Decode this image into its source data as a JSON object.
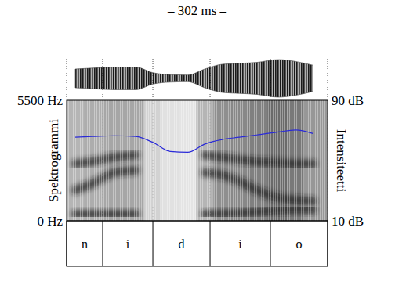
{
  "chart_data": {
    "type": "line",
    "title": "– 302 ms –",
    "xlim": [
      0,
      302
    ],
    "ylim": [
      0,
      5500
    ],
    "yticks": [
      {
        "value": 5500,
        "label": "5500 Hz"
      },
      {
        "value": 0,
        "label": "0 Hz"
      }
    ],
    "y_label": "Spektrogrammi",
    "y2lim": [
      10,
      90
    ],
    "y2ticks": [
      {
        "value": 90,
        "label": "90 dB"
      },
      {
        "value": 10,
        "label": "10 dB"
      }
    ],
    "y2_label": "Intensiteetti",
    "x": [
      10,
      30,
      55,
      80,
      100,
      120,
      140,
      160,
      180,
      200,
      220,
      245,
      265,
      285
    ],
    "series": [
      {
        "values": [
          65.5,
          66,
          66.5,
          66,
          62,
          56,
          55.5,
          61,
          64,
          65.5,
          67,
          69,
          70.3,
          68
        ],
        "color": "#2a2ad8",
        "axis": "y2"
      }
    ],
    "formants": [
      [
        300,
        300,
        300,
        300,
        null,
        null,
        null,
        300,
        320,
        350,
        400,
        480,
        520,
        500
      ],
      [
        1400,
        1700,
        2200,
        2300,
        null,
        null,
        null,
        2200,
        2100,
        1800,
        1400,
        1050,
        950,
        900
      ],
      [
        2600,
        2700,
        2900,
        3000,
        null,
        null,
        null,
        3000,
        2900,
        2800,
        2700,
        2650,
        2600,
        2600
      ]
    ],
    "amplitude": [
      0.5,
      0.55,
      0.6,
      0.6,
      0.3,
      0.2,
      0.18,
      0.5,
      0.75,
      0.8,
      0.85,
      1.0,
      0.9,
      0.7
    ],
    "segments": [
      "n",
      "i",
      "d",
      "i",
      "o"
    ],
    "boundaries": [
      0,
      41.7,
      99.8,
      166,
      235.8,
      302
    ]
  }
}
